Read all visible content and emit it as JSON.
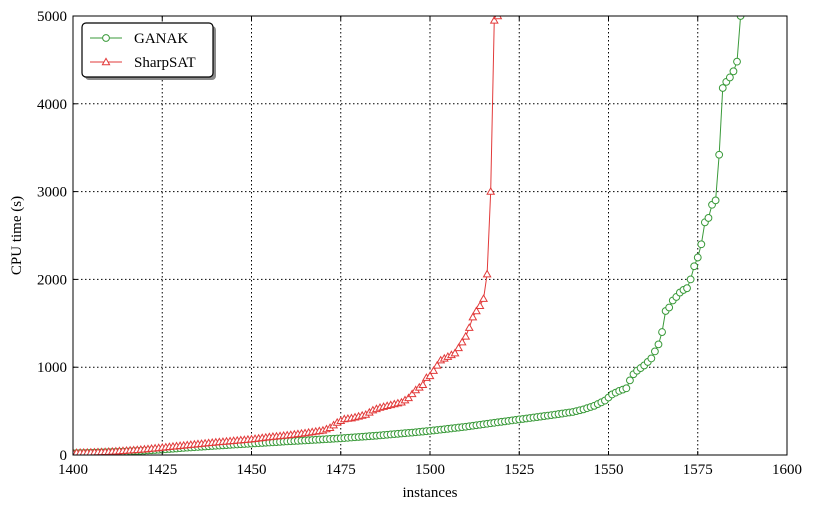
{
  "chart_data": {
    "type": "line",
    "title": "",
    "xlabel": "instances",
    "ylabel": "CPU time (s)",
    "xlim": [
      1400,
      1600
    ],
    "ylim": [
      0,
      5000
    ],
    "xticks": [
      1400,
      1425,
      1450,
      1475,
      1500,
      1525,
      1550,
      1575,
      1600
    ],
    "yticks": [
      0,
      1000,
      2000,
      3000,
      4000,
      5000
    ],
    "grid": true,
    "grid_style": "dotted",
    "legend_position": "top-left",
    "series": [
      {
        "name": "GANAK",
        "color": "#3a9a3a",
        "marker": "circle",
        "points": [
          [
            1400,
            20
          ],
          [
            1405,
            25
          ],
          [
            1410,
            32
          ],
          [
            1415,
            40
          ],
          [
            1420,
            50
          ],
          [
            1425,
            62
          ],
          [
            1430,
            78
          ],
          [
            1435,
            92
          ],
          [
            1440,
            105
          ],
          [
            1445,
            118
          ],
          [
            1450,
            130
          ],
          [
            1455,
            142
          ],
          [
            1460,
            155
          ],
          [
            1465,
            166
          ],
          [
            1470,
            178
          ],
          [
            1475,
            190
          ],
          [
            1480,
            205
          ],
          [
            1485,
            220
          ],
          [
            1490,
            238
          ],
          [
            1495,
            255
          ],
          [
            1500,
            275
          ],
          [
            1505,
            298
          ],
          [
            1510,
            322
          ],
          [
            1515,
            350
          ],
          [
            1520,
            378
          ],
          [
            1525,
            405
          ],
          [
            1530,
            432
          ],
          [
            1535,
            460
          ],
          [
            1540,
            490
          ],
          [
            1543,
            520
          ],
          [
            1546,
            560
          ],
          [
            1549,
            620
          ],
          [
            1551,
            690
          ],
          [
            1553,
            730
          ],
          [
            1555,
            760
          ],
          [
            1556,
            850
          ],
          [
            1557,
            920
          ],
          [
            1558,
            960
          ],
          [
            1560,
            1020
          ],
          [
            1562,
            1100
          ],
          [
            1563,
            1180
          ],
          [
            1564,
            1260
          ],
          [
            1565,
            1400
          ],
          [
            1566,
            1640
          ],
          [
            1567,
            1680
          ],
          [
            1568,
            1760
          ],
          [
            1569,
            1800
          ],
          [
            1570,
            1850
          ],
          [
            1571,
            1880
          ],
          [
            1572,
            1900
          ],
          [
            1573,
            2000
          ],
          [
            1574,
            2150
          ],
          [
            1575,
            2250
          ],
          [
            1576,
            2400
          ],
          [
            1577,
            2650
          ],
          [
            1578,
            2700
          ],
          [
            1579,
            2850
          ],
          [
            1580,
            2900
          ],
          [
            1581,
            3420
          ],
          [
            1582,
            4180
          ],
          [
            1583,
            4250
          ],
          [
            1584,
            4300
          ],
          [
            1585,
            4370
          ],
          [
            1586,
            4480
          ],
          [
            1587,
            5000
          ]
        ]
      },
      {
        "name": "SharpSAT",
        "color": "#e23a3a",
        "marker": "triangle",
        "points": [
          [
            1400,
            25
          ],
          [
            1405,
            30
          ],
          [
            1410,
            38
          ],
          [
            1415,
            50
          ],
          [
            1420,
            65
          ],
          [
            1425,
            85
          ],
          [
            1430,
            105
          ],
          [
            1435,
            125
          ],
          [
            1440,
            145
          ],
          [
            1445,
            162
          ],
          [
            1450,
            180
          ],
          [
            1455,
            205
          ],
          [
            1460,
            225
          ],
          [
            1465,
            250
          ],
          [
            1470,
            280
          ],
          [
            1472,
            310
          ],
          [
            1474,
            370
          ],
          [
            1476,
            410
          ],
          [
            1478,
            420
          ],
          [
            1480,
            440
          ],
          [
            1482,
            460
          ],
          [
            1484,
            510
          ],
          [
            1486,
            540
          ],
          [
            1488,
            560
          ],
          [
            1490,
            580
          ],
          [
            1492,
            600
          ],
          [
            1494,
            650
          ],
          [
            1496,
            740
          ],
          [
            1498,
            800
          ],
          [
            1499,
            880
          ],
          [
            1500,
            900
          ],
          [
            1502,
            1020
          ],
          [
            1503,
            1080
          ],
          [
            1505,
            1120
          ],
          [
            1507,
            1160
          ],
          [
            1508,
            1220
          ],
          [
            1510,
            1350
          ],
          [
            1511,
            1450
          ],
          [
            1512,
            1570
          ],
          [
            1513,
            1640
          ],
          [
            1514,
            1700
          ],
          [
            1515,
            1780
          ],
          [
            1516,
            2060
          ],
          [
            1517,
            3000
          ],
          [
            1518,
            4950
          ],
          [
            1519,
            5000
          ]
        ]
      }
    ]
  }
}
